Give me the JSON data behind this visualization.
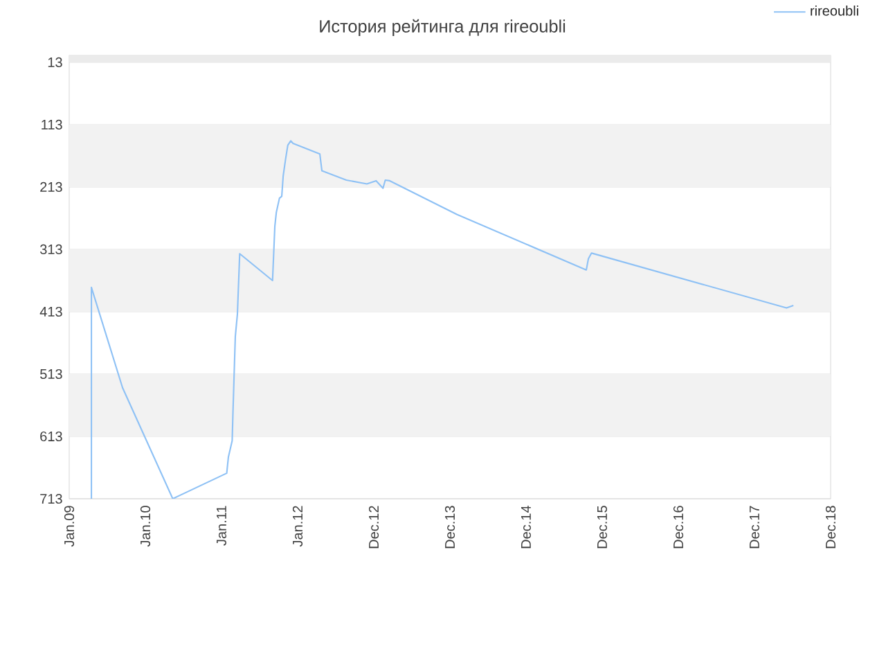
{
  "chart_data": {
    "type": "line",
    "title": "История рейтинга для rireoubli",
    "x": [
      "2009-04-21",
      "2009-04-21",
      "2009-09-17",
      "2010-05-15",
      "2011-01-28",
      "2011-02-05",
      "2011-02-23",
      "2011-02-27",
      "2011-03-10",
      "2011-03-20",
      "2011-03-31",
      "2011-09-04",
      "2011-09-15",
      "2011-09-22",
      "2011-10-07",
      "2011-10-18",
      "2011-10-25",
      "2011-11-05",
      "2011-11-16",
      "2011-11-30",
      "2011-12-11",
      "2012-04-17",
      "2012-04-27",
      "2012-08-22",
      "2012-11-28",
      "2013-01-11",
      "2013-02-13",
      "2013-02-24",
      "2013-03-17",
      "2014-02-01",
      "2015-10-13",
      "2015-10-23",
      "2015-11-07",
      "2018-05-27",
      "2018-06-29"
    ],
    "series": [
      {
        "name": "rireoubli",
        "color": "#8ec1f5",
        "values": [
          713,
          374,
          535,
          713,
          672,
          646,
          620,
          572,
          453,
          417,
          320,
          363,
          276,
          254,
          231,
          228,
          195,
          169,
          146,
          139,
          143,
          160,
          187,
          202,
          208,
          203,
          215,
          202,
          203,
          257,
          346,
          328,
          319,
          407,
          403
        ]
      }
    ],
    "xlim": [
      "2009-01-05",
      "2018-12-24"
    ],
    "xticks": [
      {
        "value": "2009-01-05",
        "label": "Jan.09"
      },
      {
        "value": "2010-01-04",
        "label": "Jan.10"
      },
      {
        "value": "2011-01-03",
        "label": "Jan.11"
      },
      {
        "value": "2012-01-02",
        "label": "Jan.12"
      },
      {
        "value": "2012-12-31",
        "label": "Dec.12"
      },
      {
        "value": "2013-12-30",
        "label": "Dec.13"
      },
      {
        "value": "2014-12-29",
        "label": "Dec.14"
      },
      {
        "value": "2015-12-28",
        "label": "Dec.15"
      },
      {
        "value": "2016-12-26",
        "label": "Dec.16"
      },
      {
        "value": "2017-12-25",
        "label": "Dec.17"
      },
      {
        "value": "2018-12-24",
        "label": "Dec.18"
      }
    ],
    "ylim": [
      713,
      2
    ],
    "yticks": [
      13,
      113,
      213,
      313,
      413,
      513,
      613,
      713
    ],
    "bands": [
      {
        "axis": "y",
        "from": 2,
        "to": 13,
        "color": "#ebebeb"
      },
      {
        "axis": "y",
        "from": 113,
        "to": 213,
        "color": "#f2f2f2"
      },
      {
        "axis": "y",
        "from": 313,
        "to": 413,
        "color": "#f2f2f2"
      },
      {
        "axis": "y",
        "from": 513,
        "to": 613,
        "color": "#f2f2f2"
      }
    ],
    "grid": "y",
    "legend": "top right",
    "marker": "none",
    "line_style": "solid"
  }
}
